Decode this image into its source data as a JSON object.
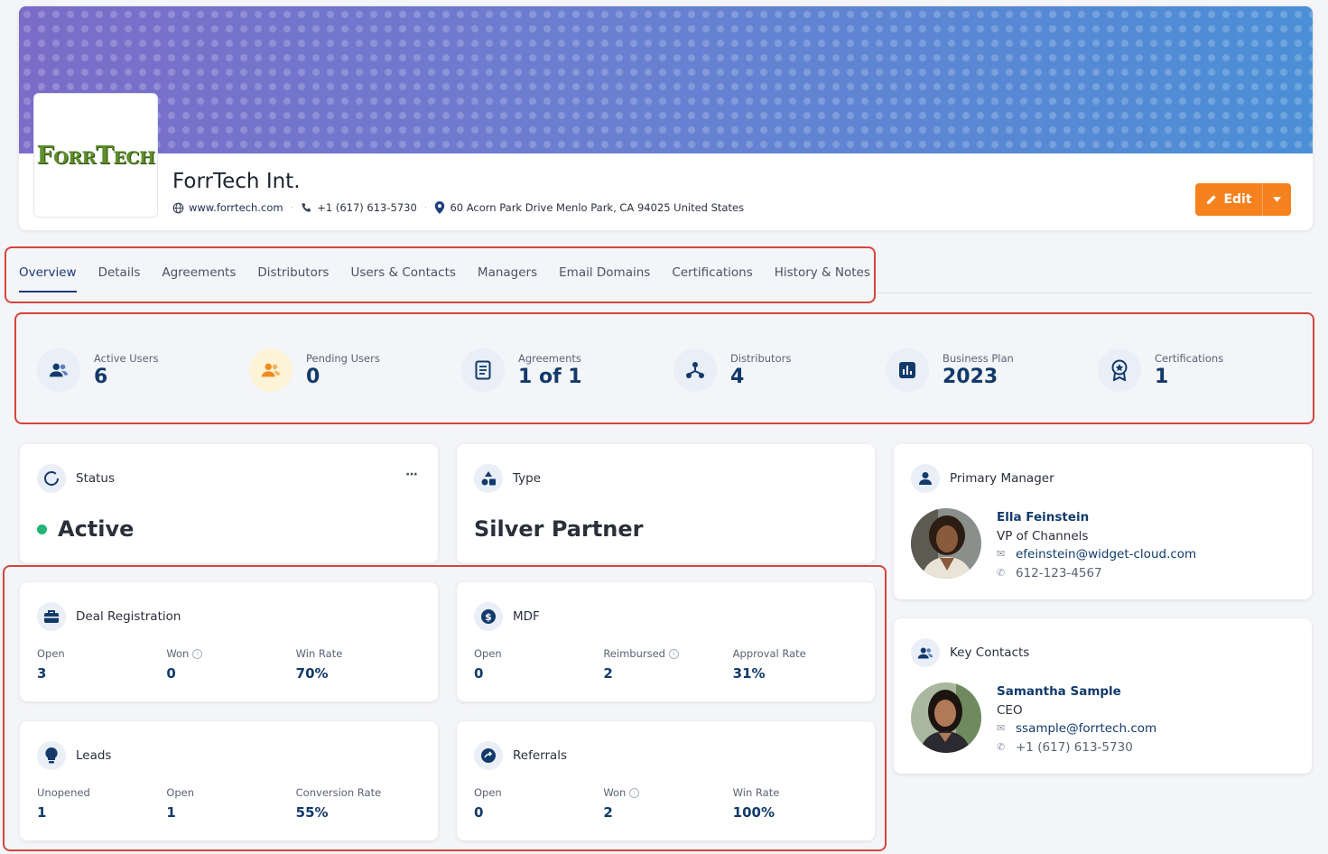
{
  "company": {
    "logo_text": "ForrTech",
    "name": "ForrTech Int.",
    "website": "www.forrtech.com",
    "phone": "+1 (617) 613-5730",
    "address": "60 Acorn Park Drive Menlo Park, CA 94025 United States"
  },
  "actions": {
    "edit_label": "Edit"
  },
  "tabs": [
    {
      "label": "Overview",
      "active": true
    },
    {
      "label": "Details"
    },
    {
      "label": "Agreements"
    },
    {
      "label": "Distributors"
    },
    {
      "label": "Users & Contacts"
    },
    {
      "label": "Managers"
    },
    {
      "label": "Email Domains"
    },
    {
      "label": "Certifications"
    },
    {
      "label": "History & Notes"
    }
  ],
  "stats": [
    {
      "label": "Active Users",
      "value": "6",
      "icon": "users-icon"
    },
    {
      "label": "Pending Users",
      "value": "0",
      "icon": "users-pending-icon"
    },
    {
      "label": "Agreements",
      "value": "1 of 1",
      "icon": "document-icon"
    },
    {
      "label": "Distributors",
      "value": "4",
      "icon": "network-icon"
    },
    {
      "label": "Business Plan",
      "value": "2023",
      "icon": "chart-icon"
    },
    {
      "label": "Certifications",
      "value": "1",
      "icon": "badge-icon"
    }
  ],
  "status_card": {
    "title": "Status",
    "value": "Active",
    "more": "···",
    "status_color": "#22b573"
  },
  "type_card": {
    "title": "Type",
    "value": "Silver Partner"
  },
  "deal_registration": {
    "title": "Deal Registration",
    "metrics": [
      {
        "label": "Open",
        "value": "3"
      },
      {
        "label": "Won",
        "value": "0",
        "info": true
      },
      {
        "label": "Win Rate",
        "value": "70%"
      }
    ]
  },
  "mdf": {
    "title": "MDF",
    "metrics": [
      {
        "label": "Open",
        "value": "0"
      },
      {
        "label": "Reimbursed",
        "value": "2",
        "info": true
      },
      {
        "label": "Approval Rate",
        "value": "31%"
      }
    ]
  },
  "leads": {
    "title": "Leads",
    "metrics": [
      {
        "label": "Unopened",
        "value": "1"
      },
      {
        "label": "Open",
        "value": "1"
      },
      {
        "label": "Conversion Rate",
        "value": "55%"
      }
    ]
  },
  "referrals": {
    "title": "Referrals",
    "metrics": [
      {
        "label": "Open",
        "value": "0"
      },
      {
        "label": "Won",
        "value": "2",
        "info": true
      },
      {
        "label": "Win Rate",
        "value": "100%"
      }
    ]
  },
  "primary_manager": {
    "title": "Primary Manager",
    "name": "Ella Feinstein",
    "role": "VP of Channels",
    "email": "efeinstein@widget-cloud.com",
    "phone": "612-123-4567"
  },
  "key_contacts": {
    "title": "Key Contacts",
    "name": "Samantha Sample",
    "role": "CEO",
    "email": "ssample@forrtech.com",
    "phone": "+1 (617) 613-5730"
  },
  "colors": {
    "accent": "#f5821f",
    "navy": "#123a6b",
    "highlight": "#d6453d"
  }
}
